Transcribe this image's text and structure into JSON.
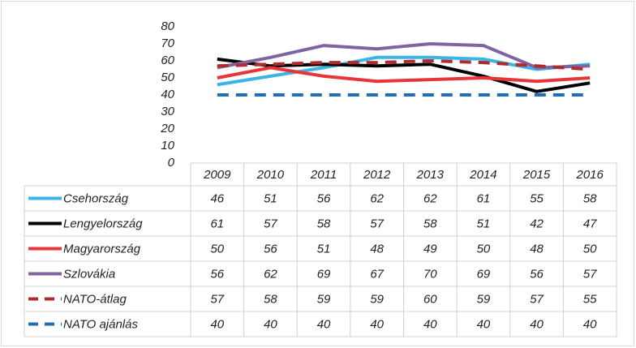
{
  "chart_data": {
    "type": "line",
    "categories": [
      "2009",
      "2010",
      "2011",
      "2012",
      "2013",
      "2014",
      "2015",
      "2016"
    ],
    "ylim": [
      0,
      80
    ],
    "yticks": [
      0,
      10,
      20,
      30,
      40,
      50,
      60,
      70,
      80
    ],
    "grid": false,
    "data_table": true,
    "series": [
      {
        "name": "Csehország",
        "color": "#3cb4e6",
        "dashed": false,
        "values": [
          46,
          51,
          56,
          62,
          62,
          61,
          55,
          58
        ]
      },
      {
        "name": "Lengyelország",
        "color": "#000000",
        "dashed": false,
        "values": [
          61,
          57,
          58,
          57,
          58,
          51,
          42,
          47
        ]
      },
      {
        "name": "Magyarország",
        "color": "#e8353a",
        "dashed": false,
        "values": [
          50,
          56,
          51,
          48,
          49,
          50,
          48,
          50
        ]
      },
      {
        "name": "Szlovákia",
        "color": "#8064a2",
        "dashed": false,
        "values": [
          56,
          62,
          69,
          67,
          70,
          69,
          56,
          57
        ]
      },
      {
        "name": "NATO-átlag",
        "color": "#b22a2e",
        "dashed": true,
        "values": [
          57,
          58,
          59,
          59,
          60,
          59,
          57,
          55
        ]
      },
      {
        "name": "NATO ajánlás",
        "color": "#1f6fb8",
        "dashed": true,
        "values": [
          40,
          40,
          40,
          40,
          40,
          40,
          40,
          40
        ]
      }
    ]
  }
}
